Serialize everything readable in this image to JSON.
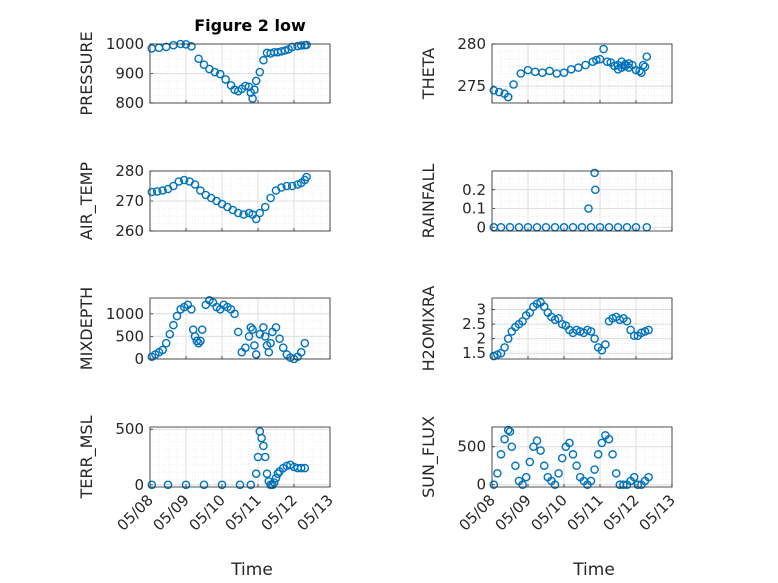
{
  "figure_title": "Figure 2 low",
  "x_axis_label": "Time",
  "x_tick_labels": [
    "05/08",
    "05/09",
    "05/10",
    "05/11",
    "05/12",
    "05/13"
  ],
  "marker_color": "#0072BD",
  "chart_data": [
    {
      "type": "scatter",
      "ylabel": "PRESSURE",
      "ylim": [
        800,
        1000
      ],
      "yticks": [
        "800",
        "900",
        "1000"
      ],
      "x": [
        0.05,
        0.25,
        0.45,
        0.65,
        0.85,
        1.0,
        1.15,
        1.35,
        1.5,
        1.65,
        1.8,
        1.95,
        2.1,
        2.25,
        2.35,
        2.45,
        2.55,
        2.65,
        2.75,
        2.8,
        2.85,
        2.9,
        2.95,
        3.05,
        3.15,
        3.25,
        3.35,
        3.45,
        3.55,
        3.65,
        3.75,
        3.85,
        3.95,
        4.1,
        4.2,
        4.3,
        4.35
      ],
      "y": [
        985,
        987,
        990,
        996,
        1000,
        999,
        992,
        950,
        930,
        915,
        905,
        898,
        880,
        860,
        845,
        840,
        848,
        858,
        855,
        835,
        815,
        845,
        875,
        905,
        945,
        970,
        968,
        972,
        972,
        975,
        978,
        982,
        990,
        993,
        995,
        996,
        997
      ]
    },
    {
      "type": "scatter",
      "ylabel": "THETA",
      "ylim": [
        273,
        280
      ],
      "yticks": [
        "275",
        "280"
      ],
      "x": [
        0.05,
        0.2,
        0.35,
        0.45,
        0.6,
        0.8,
        1.0,
        1.2,
        1.4,
        1.6,
        1.8,
        2.0,
        2.2,
        2.4,
        2.6,
        2.8,
        2.9,
        3.0,
        3.1,
        3.2,
        3.3,
        3.4,
        3.5,
        3.6,
        3.7,
        3.8,
        3.9,
        4.0,
        4.1,
        4.15,
        4.2,
        4.3
      ],
      "y": [
        274.5,
        274.3,
        274.1,
        273.7,
        275.2,
        276.5,
        276.9,
        276.7,
        276.6,
        276.8,
        276.5,
        276.6,
        277.0,
        277.2,
        277.5,
        277.9,
        278.1,
        278.2,
        279.4,
        277.9,
        277.8,
        277.4,
        277.0,
        277.2,
        277.4,
        277.7,
        277.5,
        276.9,
        276.8,
        276.6,
        277.5,
        278.5
      ],
      "x_extra": [
        3.5,
        3.6,
        3.7,
        3.8,
        4.25
      ],
      "y_extra": [
        277.5,
        277.9,
        277.6,
        277.2,
        277.3
      ]
    },
    {
      "type": "scatter",
      "ylabel": "AIR_TEMP",
      "ylim": [
        260,
        280
      ],
      "yticks": [
        "260",
        "270",
        "280"
      ],
      "x": [
        0.05,
        0.2,
        0.35,
        0.5,
        0.65,
        0.8,
        0.95,
        1.1,
        1.25,
        1.4,
        1.55,
        1.7,
        1.85,
        2.0,
        2.15,
        2.3,
        2.45,
        2.6,
        2.75,
        2.85,
        2.95,
        3.05,
        3.2,
        3.35,
        3.5,
        3.65,
        3.8,
        3.95,
        4.1,
        4.2,
        4.3,
        4.35
      ],
      "y": [
        273,
        273.2,
        273.5,
        274,
        275,
        276.5,
        277,
        276.5,
        275.5,
        273.5,
        272,
        271,
        270,
        269,
        268,
        267,
        266,
        265.5,
        266,
        265.5,
        264,
        266,
        268,
        271,
        273.5,
        274.5,
        275,
        275,
        275.5,
        276,
        277,
        278
      ]
    },
    {
      "type": "scatter",
      "ylabel": "RAINFALL",
      "ylim": [
        -0.02,
        0.3
      ],
      "yticks": [
        "0",
        "0.1",
        "0.2"
      ],
      "x": [
        0.05,
        0.25,
        0.5,
        0.75,
        1.0,
        1.25,
        1.5,
        1.75,
        2.0,
        2.25,
        2.5,
        2.75,
        3.0,
        3.25,
        3.5,
        3.75,
        4.0,
        4.3,
        2.68,
        2.85,
        2.87
      ],
      "y": [
        0,
        0,
        0,
        0,
        0,
        0,
        0,
        0,
        0,
        0,
        0,
        0,
        0,
        0,
        0,
        0,
        0,
        0,
        0.1,
        0.29,
        0.2
      ]
    },
    {
      "type": "scatter",
      "ylabel": "MIXDEPTH",
      "ylim": [
        0,
        1350
      ],
      "yticks": [
        "0",
        "500",
        "1000"
      ],
      "x": [
        0.05,
        0.15,
        0.25,
        0.35,
        0.45,
        0.55,
        0.65,
        0.75,
        0.85,
        0.95,
        1.05,
        1.15,
        1.2,
        1.25,
        1.3,
        1.35,
        1.4,
        1.45,
        1.55,
        1.65,
        1.75,
        1.85,
        1.95,
        2.05,
        2.15,
        2.25,
        2.35,
        2.45,
        2.55,
        2.65,
        2.75,
        2.8,
        2.85,
        2.9,
        2.95,
        3.05,
        3.15,
        3.2,
        3.25,
        3.3,
        3.35,
        3.4,
        3.5,
        3.6,
        3.7,
        3.8,
        3.9,
        4.0,
        4.1,
        4.2,
        4.3
      ],
      "y": [
        50,
        100,
        150,
        200,
        350,
        550,
        750,
        950,
        1100,
        1150,
        1200,
        1100,
        650,
        500,
        400,
        350,
        400,
        650,
        1200,
        1300,
        1250,
        1150,
        1100,
        1200,
        1150,
        1100,
        1000,
        600,
        150,
        250,
        500,
        700,
        650,
        300,
        100,
        550,
        700,
        500,
        300,
        150,
        350,
        600,
        700,
        450,
        250,
        100,
        30,
        0,
        50,
        150,
        350
      ]
    },
    {
      "type": "scatter",
      "ylabel": "H2OMIXRA",
      "ylim": [
        1.3,
        3.4
      ],
      "yticks": [
        "1.5",
        "2",
        "2.5",
        "3"
      ],
      "x": [
        0.05,
        0.15,
        0.25,
        0.35,
        0.45,
        0.55,
        0.65,
        0.75,
        0.85,
        0.95,
        1.05,
        1.15,
        1.25,
        1.35,
        1.45,
        1.55,
        1.65,
        1.75,
        1.85,
        1.95,
        2.05,
        2.15,
        2.25,
        2.35,
        2.45,
        2.55,
        2.65,
        2.75,
        2.85,
        2.95,
        3.05,
        3.15,
        3.25,
        3.35,
        3.45,
        3.55,
        3.65,
        3.75,
        3.85,
        3.95,
        4.05,
        4.15,
        4.25,
        4.35
      ],
      "y": [
        1.4,
        1.45,
        1.5,
        1.7,
        2.0,
        2.25,
        2.4,
        2.5,
        2.6,
        2.8,
        2.9,
        3.1,
        3.2,
        3.25,
        3.1,
        2.9,
        2.75,
        2.65,
        2.7,
        2.5,
        2.45,
        2.3,
        2.2,
        2.3,
        2.25,
        2.2,
        2.3,
        2.25,
        2.0,
        1.7,
        1.6,
        1.8,
        2.6,
        2.7,
        2.75,
        2.65,
        2.7,
        2.6,
        2.3,
        2.1,
        2.1,
        2.2,
        2.25,
        2.3
      ]
    },
    {
      "type": "scatter",
      "ylabel": "TERR_MSL",
      "ylim": [
        -20,
        520
      ],
      "yticks": [
        "0",
        "500"
      ],
      "x": [
        0.05,
        0.5,
        1.0,
        1.5,
        2.0,
        2.5,
        2.8,
        2.95,
        3.0,
        3.05,
        3.1,
        3.15,
        3.2,
        3.25,
        3.3,
        3.35,
        3.4,
        3.45,
        3.5,
        3.55,
        3.6,
        3.7,
        3.8,
        3.9,
        4.0,
        4.1,
        4.2,
        4.3
      ],
      "y": [
        0,
        0,
        0,
        0,
        0,
        0,
        0,
        100,
        250,
        480,
        420,
        350,
        250,
        100,
        30,
        0,
        0,
        20,
        60,
        100,
        120,
        150,
        170,
        180,
        160,
        150,
        150,
        150
      ]
    },
    {
      "type": "scatter",
      "ylabel": "SUN_FLUX",
      "ylim": [
        -30,
        760
      ],
      "yticks": [
        "0",
        "500"
      ],
      "x": [
        0.05,
        0.15,
        0.25,
        0.35,
        0.45,
        0.5,
        0.55,
        0.65,
        0.75,
        0.85,
        0.95,
        1.05,
        1.15,
        1.25,
        1.35,
        1.45,
        1.55,
        1.65,
        1.75,
        1.85,
        1.95,
        2.05,
        2.15,
        2.25,
        2.35,
        2.45,
        2.55,
        2.65,
        2.75,
        2.85,
        2.95,
        3.05,
        3.15,
        3.25,
        3.35,
        3.45,
        3.55,
        3.65,
        3.75,
        3.85,
        3.95,
        4.05,
        4.15,
        4.25,
        4.35
      ],
      "y": [
        0,
        150,
        400,
        600,
        720,
        700,
        500,
        250,
        50,
        0,
        100,
        300,
        500,
        580,
        450,
        250,
        100,
        50,
        0,
        150,
        350,
        500,
        550,
        400,
        250,
        100,
        50,
        0,
        50,
        200,
        400,
        550,
        650,
        600,
        400,
        150,
        0,
        0,
        0,
        50,
        100,
        0,
        0,
        50,
        100
      ]
    }
  ]
}
